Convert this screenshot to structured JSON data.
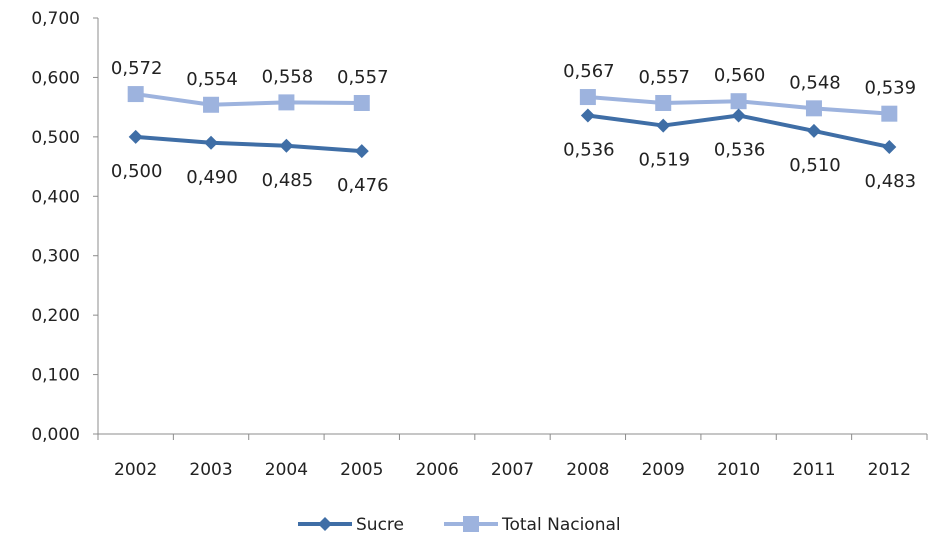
{
  "chart_data": {
    "type": "line",
    "title": "",
    "xlabel": "",
    "ylabel": "",
    "categories": [
      "2002",
      "2003",
      "2004",
      "2005",
      "2006",
      "2007",
      "2008",
      "2009",
      "2010",
      "2011",
      "2012"
    ],
    "ylim": [
      0,
      0.7
    ],
    "yticks": [
      "0,000",
      "0,100",
      "0,200",
      "0,300",
      "0,400",
      "0,500",
      "0,600",
      "0,700"
    ],
    "grid": false,
    "legend_position": "bottom",
    "series": [
      {
        "name": "Sucre",
        "color": "#3F6EA6",
        "marker": "diamond",
        "values": [
          0.5,
          0.49,
          0.485,
          0.476,
          null,
          null,
          0.536,
          0.519,
          0.536,
          0.51,
          0.483
        ],
        "labels": [
          "0,500",
          "0,490",
          "0,485",
          "0,476",
          null,
          null,
          "0,536",
          "0,519",
          "0,536",
          "0,510",
          "0,483"
        ],
        "label_position": "below"
      },
      {
        "name": "Total Nacional",
        "color": "#9DB3DE",
        "marker": "square",
        "values": [
          0.572,
          0.554,
          0.558,
          0.557,
          null,
          null,
          0.567,
          0.557,
          0.56,
          0.548,
          0.539
        ],
        "labels": [
          "0,572",
          "0,554",
          "0,558",
          "0,557",
          null,
          null,
          "0,567",
          "0,557",
          "0,560",
          "0,548",
          "0,539"
        ],
        "label_position": "above"
      }
    ]
  }
}
